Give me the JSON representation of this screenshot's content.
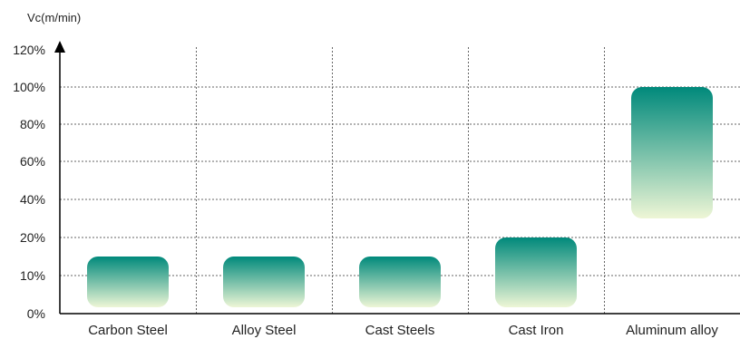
{
  "chart_data": {
    "type": "bar",
    "ylabel": "Vc(m/min)",
    "ylim": [
      0,
      120
    ],
    "y_ticks": [
      {
        "value": 0,
        "label": "0%"
      },
      {
        "value": 10,
        "label": "10%"
      },
      {
        "value": 20,
        "label": "20%"
      },
      {
        "value": 40,
        "label": "40%"
      },
      {
        "value": 60,
        "label": "60%"
      },
      {
        "value": 80,
        "label": "80%"
      },
      {
        "value": 100,
        "label": "100%"
      },
      {
        "value": 120,
        "label": "120%"
      }
    ],
    "categories": [
      "Carbon Steel",
      "Alloy Steel",
      "Cast Steels",
      "Cast Iron",
      "Aluminum alloy"
    ],
    "ranges": [
      {
        "low": 0,
        "high": 15
      },
      {
        "low": 0,
        "high": 15
      },
      {
        "low": 0,
        "high": 15
      },
      {
        "low": 0,
        "high": 20
      },
      {
        "low": 30,
        "high": 100
      }
    ],
    "grid": true,
    "colors": {
      "bar_top": "#00897b",
      "bar_bottom": "#eef6d6",
      "axis": "#000000",
      "grid": "#666666"
    }
  }
}
